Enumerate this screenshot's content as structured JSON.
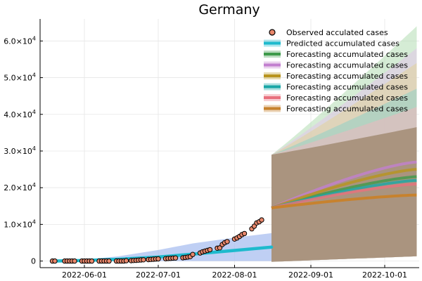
{
  "chart_data": {
    "type": "line",
    "title": "Germany",
    "xlabel": "",
    "ylabel": "",
    "x_ticks": [
      "2022-06-01",
      "2022-07-01",
      "2022-08-01",
      "2022-09-01",
      "2022-10-01"
    ],
    "y_ticks": [
      {
        "value": 0,
        "base": "0",
        "exp": ""
      },
      {
        "value": 10000,
        "base": "1.0×10",
        "exp": "4"
      },
      {
        "value": 20000,
        "base": "2.0×10",
        "exp": "4"
      },
      {
        "value": 30000,
        "base": "3.0×10",
        "exp": "4"
      },
      {
        "value": 40000,
        "base": "4.0×10",
        "exp": "4"
      },
      {
        "value": 50000,
        "base": "5.0×10",
        "exp": "4"
      },
      {
        "value": 60000,
        "base": "6.0×10",
        "exp": "4"
      }
    ],
    "xlim": [
      "2022-05-14",
      "2022-10-15"
    ],
    "ylim": [
      -1800,
      66000
    ],
    "grid": true,
    "legend_position": "top-right",
    "observed": {
      "name": "Observed acculated cases",
      "color": "#e8876b",
      "points": [
        [
          "2022-05-19",
          0
        ],
        [
          "2022-05-20",
          0
        ],
        [
          "2022-05-24",
          0
        ],
        [
          "2022-05-25",
          0
        ],
        [
          "2022-05-26",
          0
        ],
        [
          "2022-05-27",
          0
        ],
        [
          "2022-05-28",
          0
        ],
        [
          "2022-05-31",
          0
        ],
        [
          "2022-06-01",
          0
        ],
        [
          "2022-06-02",
          0
        ],
        [
          "2022-06-03",
          0
        ],
        [
          "2022-06-04",
          0
        ],
        [
          "2022-06-07",
          0
        ],
        [
          "2022-06-08",
          0
        ],
        [
          "2022-06-09",
          0
        ],
        [
          "2022-06-10",
          0
        ],
        [
          "2022-06-11",
          0
        ],
        [
          "2022-06-14",
          0
        ],
        [
          "2022-06-15",
          0
        ],
        [
          "2022-06-16",
          0
        ],
        [
          "2022-06-17",
          0
        ],
        [
          "2022-06-18",
          100
        ],
        [
          "2022-06-20",
          120
        ],
        [
          "2022-06-21",
          150
        ],
        [
          "2022-06-22",
          200
        ],
        [
          "2022-06-23",
          250
        ],
        [
          "2022-06-24",
          300
        ],
        [
          "2022-06-25",
          350
        ],
        [
          "2022-06-27",
          400
        ],
        [
          "2022-06-28",
          450
        ],
        [
          "2022-06-29",
          500
        ],
        [
          "2022-06-30",
          550
        ],
        [
          "2022-07-01",
          600
        ],
        [
          "2022-07-04",
          650
        ],
        [
          "2022-07-05",
          700
        ],
        [
          "2022-07-06",
          750
        ],
        [
          "2022-07-07",
          800
        ],
        [
          "2022-07-08",
          850
        ],
        [
          "2022-07-11",
          900
        ],
        [
          "2022-07-12",
          1000
        ],
        [
          "2022-07-13",
          1100
        ],
        [
          "2022-07-14",
          1200
        ],
        [
          "2022-07-15",
          1800
        ],
        [
          "2022-07-18",
          2200
        ],
        [
          "2022-07-19",
          2500
        ],
        [
          "2022-07-20",
          2700
        ],
        [
          "2022-07-21",
          2900
        ],
        [
          "2022-07-22",
          3100
        ],
        [
          "2022-07-25",
          3500
        ],
        [
          "2022-07-26",
          3600
        ],
        [
          "2022-07-27",
          4500
        ],
        [
          "2022-07-28",
          5000
        ],
        [
          "2022-07-29",
          5300
        ],
        [
          "2022-08-01",
          6000
        ],
        [
          "2022-08-02",
          6300
        ],
        [
          "2022-08-03",
          6700
        ],
        [
          "2022-08-04",
          7200
        ],
        [
          "2022-08-05",
          7500
        ],
        [
          "2022-08-08",
          8800
        ],
        [
          "2022-08-09",
          9500
        ],
        [
          "2022-08-10",
          10400
        ],
        [
          "2022-08-11",
          10700
        ],
        [
          "2022-08-12",
          11200
        ]
      ]
    },
    "predicted": {
      "name": "Predicted accumulated cases",
      "color": "#1ebacd",
      "band_color": "#a9bff0",
      "x": [
        "2022-05-19",
        "2022-06-01",
        "2022-06-15",
        "2022-07-01",
        "2022-07-15",
        "2022-08-01",
        "2022-08-16"
      ],
      "y": [
        0,
        150,
        500,
        1100,
        1900,
        2900,
        3800
      ],
      "lower": [
        0,
        0,
        0,
        0,
        0,
        0,
        0
      ],
      "upper": [
        50,
        400,
        1300,
        3000,
        4800,
        6400,
        7600
      ]
    },
    "forecast_start": "2022-08-16",
    "forecast_end": "2022-10-14",
    "series": [
      {
        "name": "Forecasting accumulated cases",
        "color": "#3e9a4a",
        "band_color": "#b2dcb2",
        "start": 14500,
        "end": 23000,
        "upper_start": 29000,
        "upper_end": 64000
      },
      {
        "name": "Forecasting accumulated cases",
        "color": "#c27fcf",
        "band_color": "#e2c6ea",
        "start": 14500,
        "end": 27000,
        "upper_start": 29000,
        "upper_end": 58000
      },
      {
        "name": "Forecasting accumulated cases",
        "color": "#b8941e",
        "band_color": "#e2d29a",
        "start": 14500,
        "end": 25000,
        "upper_start": 29000,
        "upper_end": 54000
      },
      {
        "name": "Forecasting accumulated cases",
        "color": "#19a6a6",
        "band_color": "#8fcfc6",
        "start": 14500,
        "end": 22000,
        "upper_start": 29000,
        "upper_end": 47000
      },
      {
        "name": "Forecasting accumulated cases",
        "color": "#e8707d",
        "band_color": "#efb7bd",
        "start": 14500,
        "end": 21000,
        "upper_start": 29000,
        "upper_end": 42000
      },
      {
        "name": "Forecasting accumulated cases",
        "color": "#c7822e",
        "band_color": "#a8917b",
        "start": 14500,
        "end": 18000,
        "upper_start": 29000,
        "upper_end": 36500
      }
    ]
  }
}
